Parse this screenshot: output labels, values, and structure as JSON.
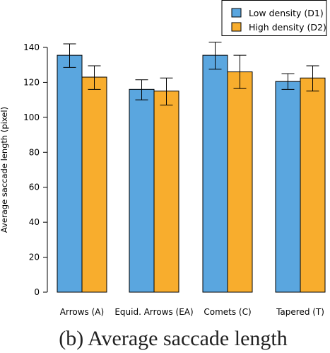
{
  "chart_data": {
    "type": "bar",
    "title": "",
    "caption": "(b)  Average saccade length",
    "xlabel": "",
    "ylabel": "Average saccade length (pixel)",
    "ylim": [
      0,
      140
    ],
    "yticks": [
      0,
      20,
      40,
      60,
      80,
      100,
      120,
      140
    ],
    "grid": false,
    "legend_position": "top-right",
    "categories": [
      "Arrows (A)",
      "Equid. Arrows (EA)",
      "Comets (C)",
      "Tapered (T)"
    ],
    "series": [
      {
        "name": "Low density  (D1)",
        "color": "#5aa6df",
        "values": [
          135.5,
          116,
          135.5,
          120.5
        ],
        "err_low": [
          128.5,
          110,
          127.5,
          116
        ],
        "err_high": [
          142,
          121.5,
          143,
          125
        ]
      },
      {
        "name": "High density (D2)",
        "color": "#f8ad2d",
        "values": [
          123,
          115,
          126,
          122.5
        ],
        "err_low": [
          116,
          107,
          116.5,
          115
        ],
        "err_high": [
          129.5,
          122.5,
          135.5,
          129.5
        ]
      }
    ]
  }
}
